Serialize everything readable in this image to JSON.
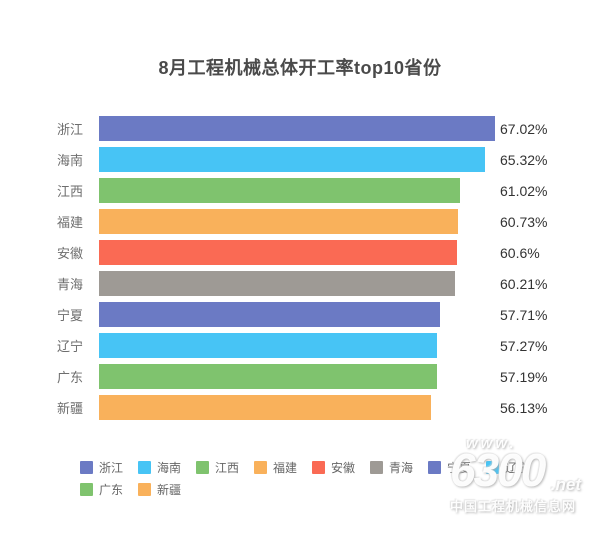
{
  "title": "8月工程机械总体开工率top10省份",
  "palette": [
    "#6B7AC4",
    "#47C4F5",
    "#7FC36E",
    "#F9B15B",
    "#FA6A54",
    "#9E9A95"
  ],
  "chart_data": {
    "type": "bar",
    "orientation": "horizontal",
    "title": "8月工程机械总体开工率top10省份",
    "categories": [
      "浙江",
      "海南",
      "江西",
      "福建",
      "安徽",
      "青海",
      "宁夏",
      "辽宁",
      "广东",
      "新疆"
    ],
    "values": [
      67.02,
      65.32,
      61.02,
      60.73,
      60.6,
      60.21,
      57.71,
      57.27,
      57.19,
      56.13
    ],
    "value_labels": [
      "67.02%",
      "65.32%",
      "61.02%",
      "60.73%",
      "60.6%",
      "60.21%",
      "57.71%",
      "57.27%",
      "57.19%",
      "56.13%"
    ],
    "xlabel": "",
    "ylabel": "",
    "xlim": [
      0,
      67.02
    ],
    "grid": false,
    "legend_position": "bottom"
  },
  "legend": {
    "items": [
      {
        "label": "浙江",
        "color": "#6B7AC4"
      },
      {
        "label": "海南",
        "color": "#47C4F5"
      },
      {
        "label": "江西",
        "color": "#7FC36E"
      },
      {
        "label": "福建",
        "color": "#F9B15B"
      },
      {
        "label": "安徽",
        "color": "#FA6A54"
      },
      {
        "label": "青海",
        "color": "#9E9A95"
      },
      {
        "label": "宁夏",
        "color": "#6B7AC4"
      },
      {
        "label": "辽宁",
        "color": "#47C4F5"
      },
      {
        "label": "广东",
        "color": "#7FC36E"
      },
      {
        "label": "新疆",
        "color": "#F9B15B"
      }
    ]
  },
  "watermark": {
    "www": "www.",
    "brand": "6300",
    "net": ".net",
    "caption": "中国工程机械信息网"
  }
}
